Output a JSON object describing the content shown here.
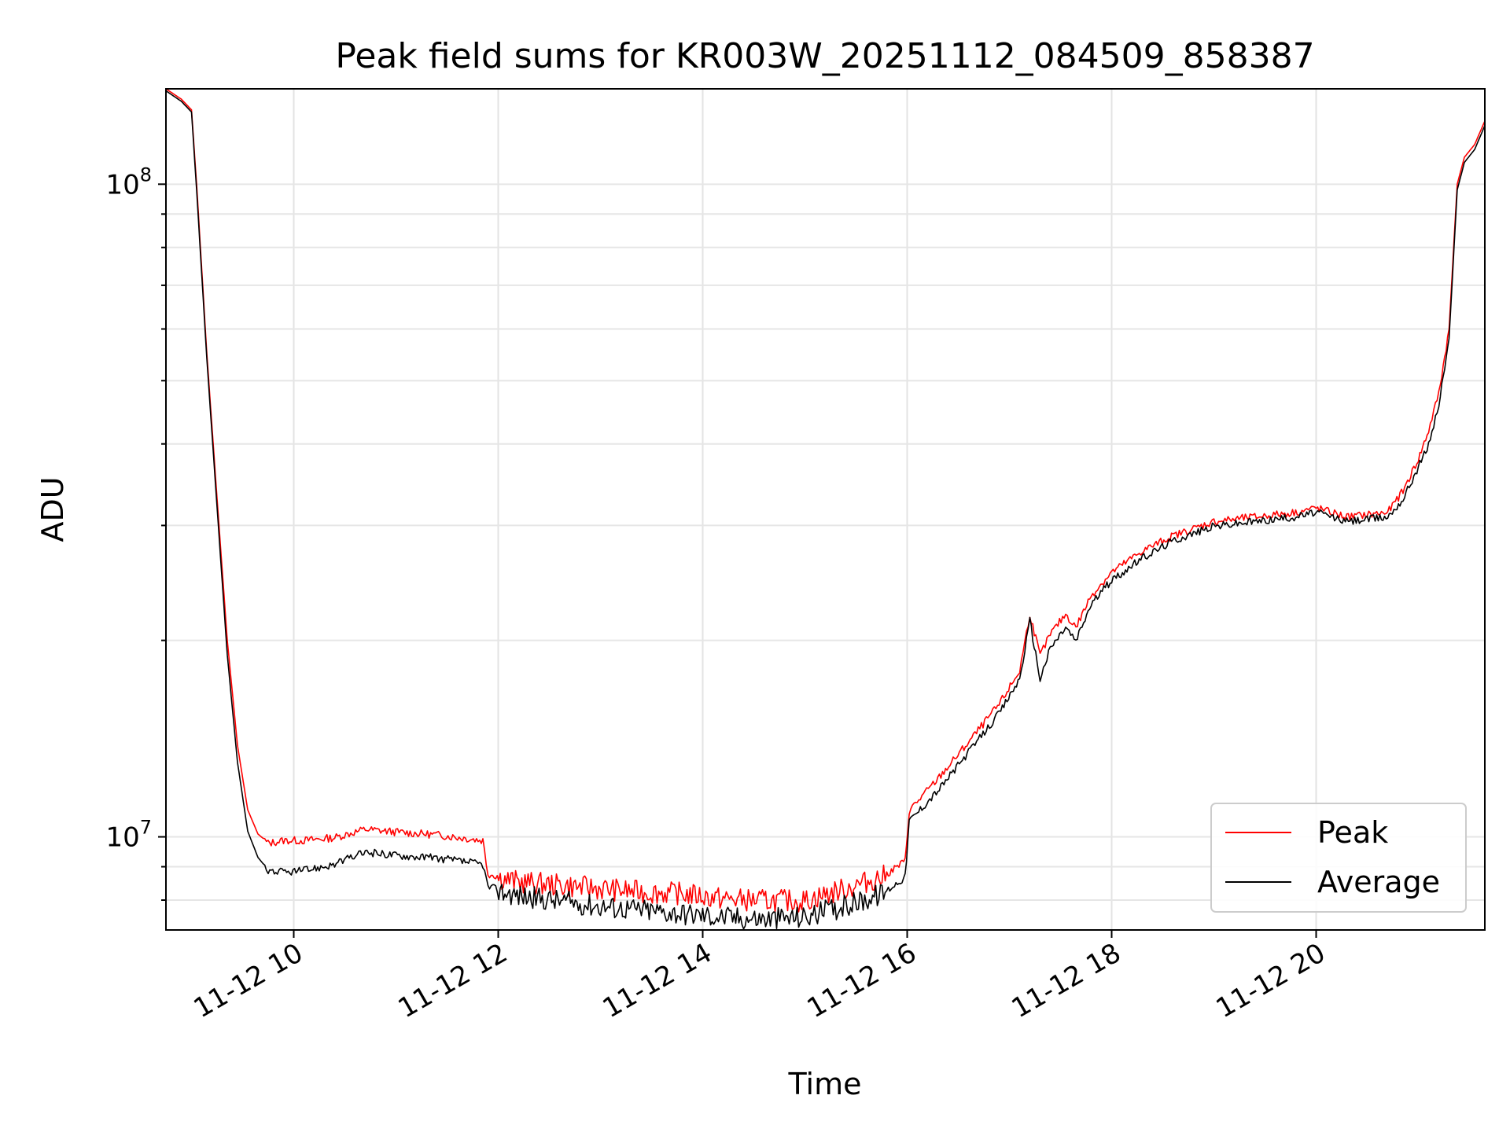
{
  "chart_data": {
    "type": "line",
    "title": "Peak field sums for KR003W_20251112_084509_858387",
    "xlabel": "Time",
    "ylabel": "ADU",
    "yscale": "log",
    "xlim": [
      8.75,
      21.65
    ],
    "ylim": [
      7200000,
      140000000
    ],
    "x_unit": "hours since 2025-11-12 00:00",
    "x_ticks": [
      {
        "value": 10,
        "label": "11-12 10"
      },
      {
        "value": 12,
        "label": "11-12 12"
      },
      {
        "value": 14,
        "label": "11-12 14"
      },
      {
        "value": 16,
        "label": "11-12 16"
      },
      {
        "value": 18,
        "label": "11-12 18"
      },
      {
        "value": 20,
        "label": "11-12 20"
      }
    ],
    "y_ticks": [
      {
        "value": 10000000,
        "base": "10",
        "exp": "7"
      },
      {
        "value": 100000000,
        "base": "10",
        "exp": "8"
      }
    ],
    "grid": true,
    "legend_position": "bottom-right",
    "series": [
      {
        "name": "Peak",
        "color": "#ff0000",
        "x": [
          8.75,
          8.9,
          9.0,
          9.05,
          9.15,
          9.25,
          9.35,
          9.45,
          9.55,
          9.65,
          9.75,
          9.9,
          10.1,
          10.4,
          10.7,
          11.0,
          11.4,
          11.85,
          11.9,
          12.2,
          12.6,
          13.0,
          13.4,
          13.8,
          14.2,
          14.6,
          15.0,
          15.4,
          15.8,
          15.98,
          16.02,
          16.3,
          16.6,
          16.9,
          17.1,
          17.2,
          17.3,
          17.4,
          17.55,
          17.65,
          17.8,
          18.0,
          18.3,
          18.6,
          19.0,
          19.4,
          19.8,
          20.0,
          20.3,
          20.7,
          20.85,
          21.0,
          21.1,
          21.2,
          21.3,
          21.38,
          21.45,
          21.55,
          21.65
        ],
        "y": [
          140000000,
          135000000,
          130000000,
          100000000,
          55000000,
          33000000,
          20000000,
          13800000,
          11000000,
          10100000,
          9800000,
          9900000,
          9900000,
          10000000,
          10300000,
          10200000,
          10100000,
          9900000,
          8800000,
          8600000,
          8500000,
          8400000,
          8300000,
          8250000,
          8100000,
          8050000,
          8050000,
          8400000,
          8800000,
          9200000,
          11000000,
          12300000,
          14000000,
          16000000,
          18000000,
          22000000,
          19000000,
          20500000,
          22000000,
          21000000,
          23500000,
          25500000,
          27500000,
          29000000,
          30500000,
          31000000,
          31500000,
          32000000,
          31000000,
          31500000,
          34000000,
          38000000,
          42000000,
          48000000,
          60000000,
          100000000,
          110000000,
          115000000,
          125000000
        ]
      },
      {
        "name": "Average",
        "color": "#000000",
        "x": [
          8.75,
          8.9,
          9.0,
          9.05,
          9.15,
          9.25,
          9.35,
          9.45,
          9.55,
          9.65,
          9.75,
          9.9,
          10.1,
          10.4,
          10.7,
          11.0,
          11.4,
          11.85,
          11.9,
          12.2,
          12.6,
          13.0,
          13.4,
          13.8,
          14.2,
          14.6,
          15.0,
          15.4,
          15.8,
          15.98,
          16.02,
          16.3,
          16.6,
          16.9,
          17.1,
          17.2,
          17.3,
          17.4,
          17.55,
          17.65,
          17.8,
          18.0,
          18.3,
          18.6,
          19.0,
          19.4,
          19.8,
          20.0,
          20.3,
          20.7,
          20.85,
          21.0,
          21.1,
          21.2,
          21.3,
          21.38,
          21.45,
          21.55,
          21.65
        ],
        "y": [
          139000000,
          134000000,
          129000000,
          98000000,
          54000000,
          32000000,
          19000000,
          13000000,
          10200000,
          9300000,
          8900000,
          8850000,
          8900000,
          9100000,
          9500000,
          9400000,
          9300000,
          9100000,
          8400000,
          8200000,
          8050000,
          7900000,
          7800000,
          7700000,
          7600000,
          7550000,
          7600000,
          7900000,
          8300000,
          8700000,
          10600000,
          11800000,
          13500000,
          15500000,
          17500000,
          21500000,
          17500000,
          19500000,
          21000000,
          20000000,
          22800000,
          24800000,
          26800000,
          28500000,
          30000000,
          30500000,
          31000000,
          31500000,
          30500000,
          31000000,
          33000000,
          37000000,
          40000000,
          46000000,
          58000000,
          98000000,
          108000000,
          113000000,
          123000000
        ]
      }
    ]
  }
}
